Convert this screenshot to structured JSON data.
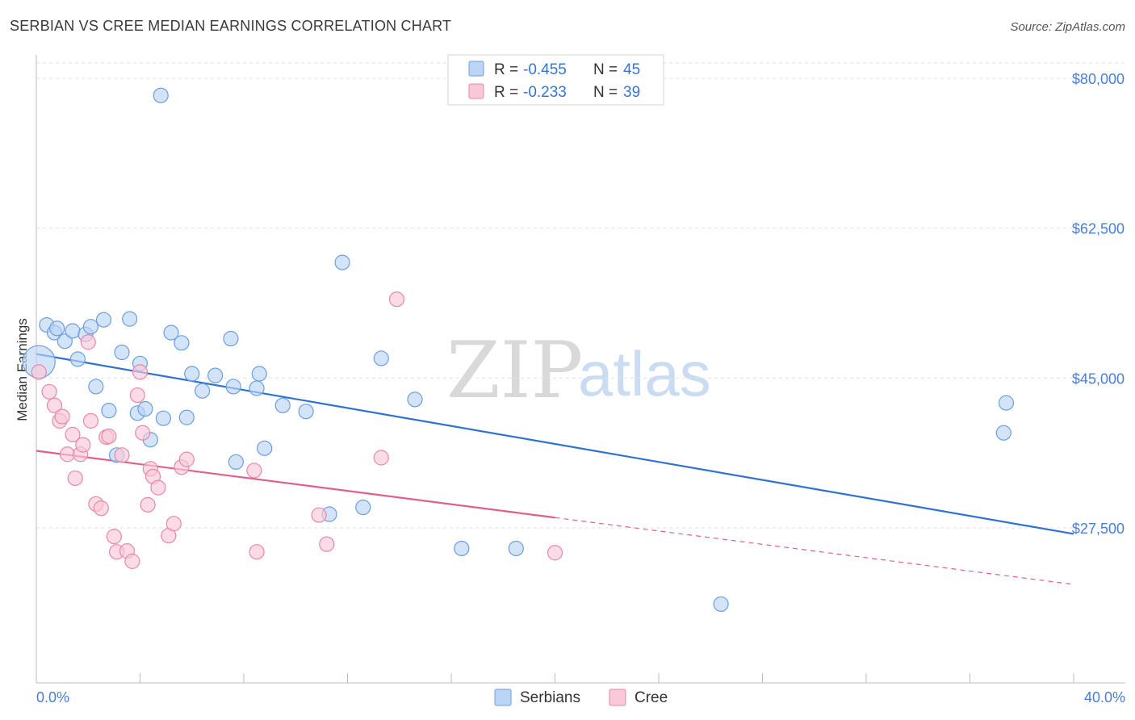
{
  "header": {
    "title": "SERBIAN VS CREE MEDIAN EARNINGS CORRELATION CHART",
    "source": "Source: ZipAtlas.com"
  },
  "watermark": {
    "zip": "ZIP",
    "atlas": "atlas"
  },
  "chart_data": {
    "type": "scatter",
    "title": "SERBIAN VS CREE MEDIAN EARNINGS CORRELATION CHART",
    "ylabel": "Median Earnings",
    "xlabel": "",
    "xlim": [
      0,
      40
    ],
    "ylim": [
      13000,
      82000
    ],
    "x_tick_labels": [
      "0.0%",
      "40.0%"
    ],
    "y_ticks": [
      {
        "value": 80000,
        "label": "$80,000"
      },
      {
        "value": 62500,
        "label": "$62,500"
      },
      {
        "value": 45000,
        "label": "$45,000"
      },
      {
        "value": 27500,
        "label": "$27,500"
      }
    ],
    "grid": "horizontal dashed",
    "legend_position": "bottom-center",
    "stats": [
      {
        "r_label": "R =",
        "r": "-0.455",
        "n_label": "N =",
        "n": "45",
        "color": "#6b9fe0",
        "fill": "#bcd4f5"
      },
      {
        "r_label": "R =",
        "r": "-0.233",
        "n_label": "N =",
        "n": "39",
        "color": "#e888a6",
        "fill": "#f9c9d8"
      }
    ],
    "series": [
      {
        "name": "Serbians",
        "color": "#6b9fe0",
        "fill": "#bcd4f5",
        "line_color": "#2f72d1",
        "trend": {
          "x": [
            0,
            40
          ],
          "y": [
            47800,
            26800
          ],
          "solid_to": 40
        },
        "points": [
          [
            0.1,
            46900
          ],
          [
            0.4,
            51200
          ],
          [
            0.7,
            50300
          ],
          [
            0.8,
            50800
          ],
          [
            1.1,
            49300
          ],
          [
            1.4,
            50500
          ],
          [
            1.6,
            47200
          ],
          [
            1.9,
            50100
          ],
          [
            2.1,
            51000
          ],
          [
            2.3,
            44000
          ],
          [
            2.6,
            51800
          ],
          [
            2.8,
            41200
          ],
          [
            3.1,
            36000
          ],
          [
            3.3,
            48000
          ],
          [
            3.6,
            51900
          ],
          [
            3.9,
            40900
          ],
          [
            4.0,
            46700
          ],
          [
            4.2,
            41400
          ],
          [
            4.4,
            37800
          ],
          [
            4.8,
            78000
          ],
          [
            4.9,
            40300
          ],
          [
            5.2,
            50300
          ],
          [
            5.6,
            49100
          ],
          [
            5.8,
            40400
          ],
          [
            6.0,
            45500
          ],
          [
            6.4,
            43500
          ],
          [
            6.9,
            45300
          ],
          [
            7.5,
            49600
          ],
          [
            7.6,
            44000
          ],
          [
            7.7,
            35200
          ],
          [
            8.5,
            43800
          ],
          [
            8.6,
            45500
          ],
          [
            8.8,
            36800
          ],
          [
            9.5,
            41800
          ],
          [
            10.4,
            41100
          ],
          [
            11.8,
            58500
          ],
          [
            11.3,
            29100
          ],
          [
            12.6,
            29900
          ],
          [
            13.3,
            47300
          ],
          [
            14.6,
            42500
          ],
          [
            16.4,
            25100
          ],
          [
            18.5,
            25100
          ],
          [
            26.4,
            18600
          ],
          [
            37.4,
            42100
          ],
          [
            37.3,
            38600
          ]
        ]
      },
      {
        "name": "Cree",
        "color": "#e888a6",
        "fill": "#f9c9d8",
        "line_color": "#e0608b",
        "trend": {
          "x": [
            0,
            40
          ],
          "y": [
            36500,
            20900
          ],
          "solid_to": 20
        },
        "points": [
          [
            0.1,
            45700
          ],
          [
            0.5,
            43400
          ],
          [
            0.7,
            41800
          ],
          [
            0.9,
            40000
          ],
          [
            1.0,
            40500
          ],
          [
            1.2,
            36100
          ],
          [
            1.4,
            38400
          ],
          [
            1.5,
            33300
          ],
          [
            1.7,
            36100
          ],
          [
            1.8,
            37200
          ],
          [
            2.0,
            49200
          ],
          [
            2.1,
            40000
          ],
          [
            2.3,
            30300
          ],
          [
            2.5,
            29800
          ],
          [
            2.7,
            38100
          ],
          [
            2.8,
            38200
          ],
          [
            3.0,
            26500
          ],
          [
            3.1,
            24700
          ],
          [
            3.3,
            36000
          ],
          [
            3.5,
            24800
          ],
          [
            3.7,
            23600
          ],
          [
            3.9,
            43000
          ],
          [
            4.0,
            45700
          ],
          [
            4.1,
            38600
          ],
          [
            4.3,
            30200
          ],
          [
            4.4,
            34400
          ],
          [
            4.5,
            33500
          ],
          [
            4.7,
            32200
          ],
          [
            5.1,
            26600
          ],
          [
            5.3,
            28000
          ],
          [
            5.6,
            34600
          ],
          [
            5.8,
            35500
          ],
          [
            8.4,
            34200
          ],
          [
            8.5,
            24700
          ],
          [
            10.9,
            29000
          ],
          [
            11.2,
            25600
          ],
          [
            13.9,
            54200
          ],
          [
            13.3,
            35700
          ],
          [
            20.0,
            24600
          ]
        ]
      }
    ]
  }
}
